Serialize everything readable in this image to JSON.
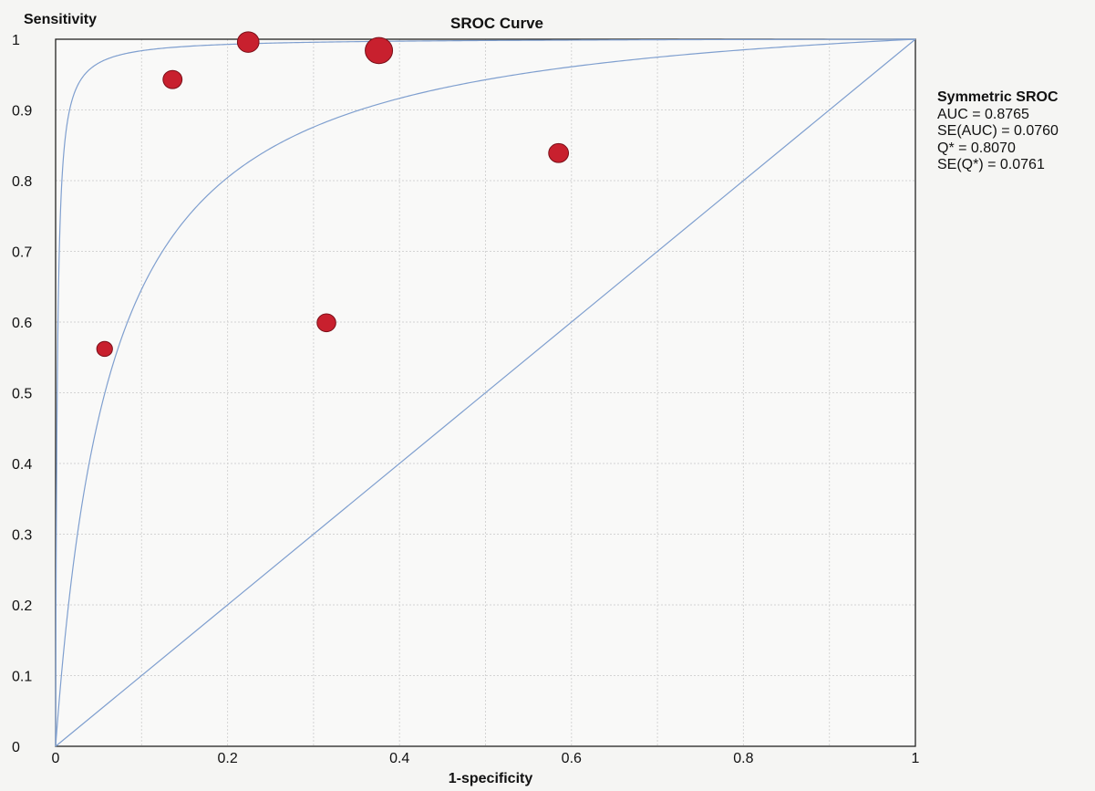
{
  "chart_data": {
    "type": "scatter",
    "title": "SROC Curve",
    "xlabel": "1-specificity",
    "ylabel": "Sensitivity",
    "xlim": [
      0,
      1
    ],
    "ylim": [
      0,
      1
    ],
    "grid": true,
    "x_ticks": [
      "0",
      "0.2",
      "0.4",
      "0.6",
      "0.8",
      "1"
    ],
    "y_ticks": [
      "0",
      "0.1",
      "0.2",
      "0.3",
      "0.4",
      "0.5",
      "0.6",
      "0.7",
      "0.8",
      "0.9",
      "1"
    ],
    "points": [
      {
        "x": 0.057,
        "y": 0.562,
        "weight": 1.0
      },
      {
        "x": 0.136,
        "y": 0.943,
        "weight": 2.0
      },
      {
        "x": 0.224,
        "y": 0.996,
        "weight": 3.0
      },
      {
        "x": 0.315,
        "y": 0.599,
        "weight": 1.9
      },
      {
        "x": 0.376,
        "y": 0.984,
        "weight": 6.0
      },
      {
        "x": 0.585,
        "y": 0.839,
        "weight": 2.3
      }
    ],
    "point_color": "#c8202e",
    "curve_color": "#7f9fcf",
    "diagonal": true,
    "sroc_curves": [
      "center",
      "upper"
    ],
    "annotation": {
      "title": "Symmetric SROC",
      "lines": [
        "AUC = 0.8765",
        "SE(AUC) = 0.0760",
        "Q* = 0.8070",
        "SE(Q*) = 0.0761"
      ]
    }
  }
}
